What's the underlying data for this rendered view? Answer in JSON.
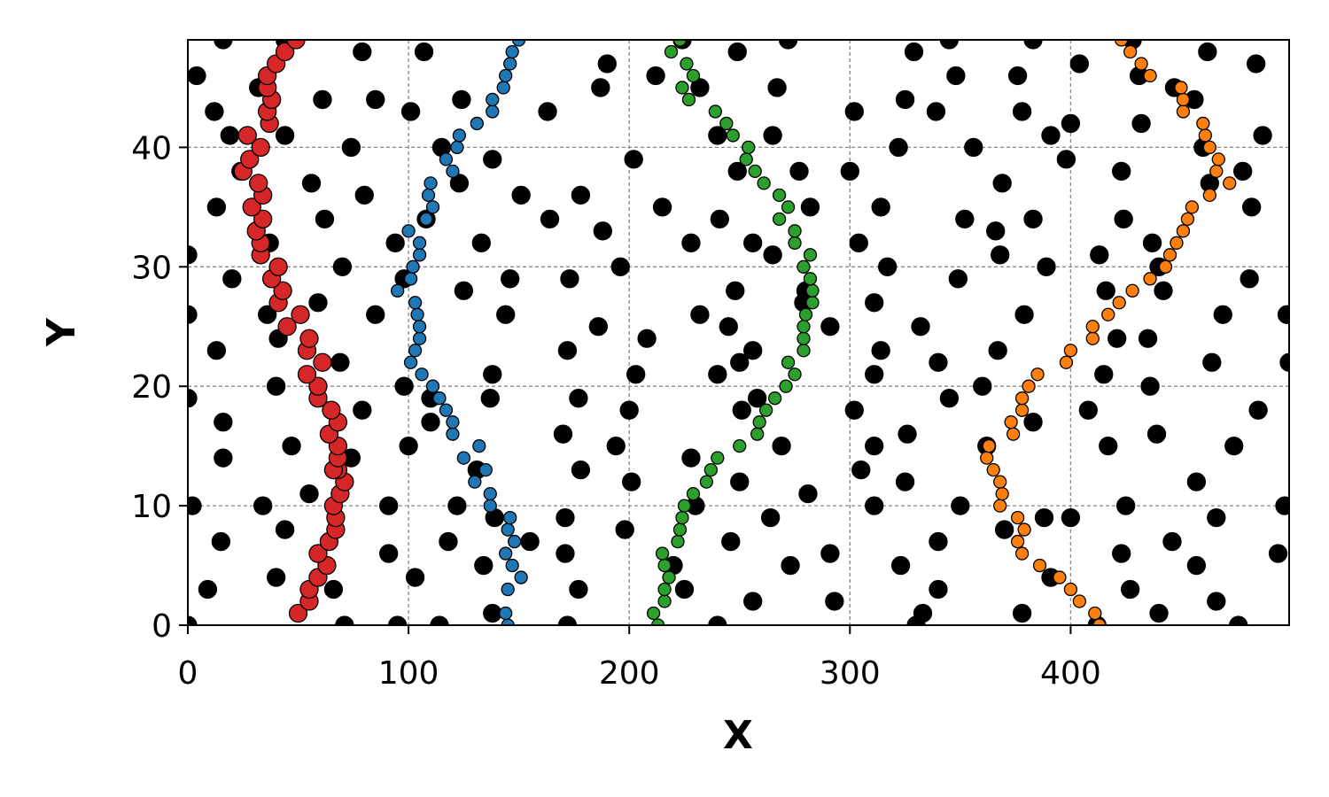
{
  "chart_data": {
    "type": "scatter",
    "xlabel": "X",
    "ylabel": "Y",
    "xlim": [
      0,
      499
    ],
    "ylim": [
      0,
      49
    ],
    "xticks": [
      0,
      100,
      200,
      300,
      400
    ],
    "yticks": [
      0,
      10,
      20,
      30,
      40
    ],
    "grid": true,
    "series": [
      {
        "color": "#000000",
        "marker_size": 10,
        "x": [
          16,
          44,
          224,
          272,
          345,
          383,
          428,
          79,
          107,
          249,
          329,
          462,
          190,
          404,
          484,
          4,
          212,
          348,
          376,
          431,
          32,
          187,
          232,
          267,
          447,
          61,
          85,
          124,
          325,
          456,
          12,
          101,
          163,
          302,
          339,
          378,
          400,
          432,
          19,
          44,
          240,
          265,
          391,
          487,
          74,
          115,
          322,
          356,
          460,
          138,
          202,
          398,
          24,
          249,
          277,
          300,
          423,
          478,
          56,
          123,
          369,
          463,
          80,
          151,
          178,
          13,
          215,
          282,
          314,
          482,
          62,
          108,
          164,
          241,
          352,
          383,
          424,
          188,
          366,
          37,
          94,
          133,
          228,
          256,
          304,
          437,
          0,
          265,
          368,
          413,
          70,
          196,
          317,
          389,
          440,
          20,
          98,
          146,
          173,
          349,
          481,
          125,
          248,
          280,
          416,
          442,
          59,
          279,
          311,
          0,
          36,
          85,
          144,
          232,
          379,
          469,
          498,
          186,
          245,
          291,
          332,
          41,
          208,
          421,
          435,
          13,
          172,
          256,
          314,
          367,
          69,
          250,
          340,
          464,
          499,
          138,
          203,
          240,
          311,
          415,
          40,
          98,
          360,
          436,
          0,
          110,
          137,
          177,
          258,
          345,
          79,
          200,
          251,
          302,
          408,
          485,
          16,
          110,
          383,
          170,
          326,
          439,
          47,
          100,
          194,
          269,
          311,
          362,
          417,
          474,
          16,
          74,
          228,
          131,
          178,
          305,
          201,
          250,
          325,
          457,
          55,
          281,
          2,
          34,
          91,
          122,
          230,
          311,
          350,
          425,
          497,
          139,
          171,
          264,
          388,
          400,
          466,
          44,
          198,
          370,
          15,
          118,
          155,
          246,
          340,
          446,
          91,
          171,
          291,
          423,
          494,
          134,
          220,
          273,
          323,
          457,
          40,
          103,
          391,
          9,
          66,
          177,
          225,
          340,
          427,
          256,
          293,
          466,
          138,
          333,
          378,
          440,
          0,
          71,
          95,
          114,
          172,
          240,
          330,
          412,
          476
        ],
        "values": [
          49,
          49,
          49,
          49,
          49,
          49,
          49,
          48,
          48,
          48,
          48,
          48,
          47,
          47,
          47,
          46,
          46,
          46,
          46,
          46,
          45,
          45,
          45,
          45,
          45,
          44,
          44,
          44,
          44,
          44,
          43,
          43,
          43,
          43,
          43,
          43,
          42,
          42,
          41,
          41,
          41,
          41,
          41,
          41,
          40,
          40,
          40,
          40,
          40,
          39,
          39,
          39,
          38,
          38,
          38,
          38,
          38,
          38,
          37,
          37,
          37,
          37,
          36,
          36,
          36,
          35,
          35,
          35,
          35,
          35,
          34,
          34,
          34,
          34,
          34,
          34,
          34,
          33,
          33,
          32,
          32,
          32,
          32,
          32,
          32,
          32,
          31,
          31,
          31,
          31,
          30,
          30,
          30,
          30,
          30,
          29,
          29,
          29,
          29,
          29,
          29,
          28,
          28,
          28,
          28,
          28,
          27,
          27,
          27,
          26,
          26,
          26,
          26,
          26,
          26,
          26,
          26,
          25,
          25,
          25,
          25,
          24,
          24,
          24,
          24,
          23,
          23,
          23,
          23,
          23,
          22,
          22,
          22,
          22,
          22,
          21,
          21,
          21,
          21,
          21,
          20,
          20,
          20,
          20,
          19,
          19,
          19,
          19,
          19,
          19,
          18,
          18,
          18,
          18,
          18,
          18,
          17,
          17,
          17,
          16,
          16,
          16,
          15,
          15,
          15,
          15,
          15,
          15,
          15,
          15,
          14,
          14,
          14,
          13,
          13,
          13,
          12,
          12,
          12,
          12,
          11,
          11,
          10,
          10,
          10,
          10,
          10,
          10,
          10,
          10,
          10,
          9,
          9,
          9,
          9,
          9,
          9,
          8,
          8,
          8,
          7,
          7,
          7,
          7,
          7,
          7,
          6,
          6,
          6,
          6,
          6,
          5,
          5,
          5,
          5,
          5,
          4,
          4,
          4,
          3,
          3,
          3,
          3,
          3,
          3,
          2,
          2,
          2,
          1,
          1,
          1,
          1,
          0,
          0,
          0,
          0,
          0,
          0,
          0,
          0,
          0
        ]
      },
      {
        "color": "#d62728",
        "marker_size": 10,
        "x": [
          50,
          55,
          55,
          59,
          63,
          59,
          64,
          67,
          67,
          66,
          69,
          71,
          68,
          66,
          68,
          68,
          64,
          68,
          65,
          59,
          59,
          54,
          61,
          54,
          55,
          45,
          51,
          41,
          43,
          38,
          41,
          33,
          33,
          31,
          34,
          29,
          34,
          32,
          25,
          28,
          33,
          27,
          37,
          36,
          38,
          36,
          36,
          40,
          44,
          49
        ],
        "values": [
          1,
          2,
          3,
          4,
          5,
          6,
          7,
          8,
          9,
          10,
          11,
          12,
          13,
          13,
          14,
          15,
          16,
          17,
          18,
          19,
          20,
          21,
          22,
          23,
          24,
          25,
          26,
          27,
          28,
          29,
          30,
          31,
          32,
          33,
          34,
          35,
          36,
          37,
          38,
          39,
          40,
          41,
          42,
          43,
          44,
          45,
          46,
          47,
          48,
          49
        ]
      },
      {
        "color": "#1f77b4",
        "marker_size": 7,
        "x": [
          145,
          144,
          145,
          151,
          147,
          144,
          148,
          145,
          146,
          137,
          137,
          130,
          135,
          125,
          132,
          120,
          120,
          117,
          114,
          111,
          106,
          101,
          103,
          105,
          105,
          104,
          103,
          95,
          101,
          102,
          105,
          105,
          100,
          108,
          111,
          109,
          110,
          120,
          117,
          122,
          123,
          131,
          138,
          138,
          143,
          144,
          146,
          147,
          150
        ],
        "values": [
          0,
          1,
          3,
          4,
          5,
          6,
          7,
          8,
          9,
          10,
          11,
          12,
          13,
          14,
          15,
          16,
          17,
          18,
          19,
          20,
          21,
          22,
          23,
          24,
          25,
          26,
          27,
          28,
          29,
          30,
          31,
          32,
          33,
          34,
          35,
          36,
          37,
          38,
          39,
          40,
          41,
          42,
          43,
          44,
          45,
          46,
          47,
          48,
          49
        ]
      },
      {
        "color": "#2ca02c",
        "marker_size": 7,
        "x": [
          213,
          211,
          216,
          216,
          218,
          216,
          215,
          222,
          223,
          224,
          225,
          229,
          235,
          237,
          240,
          250,
          258,
          259,
          262,
          266,
          271,
          275,
          272,
          279,
          279,
          279,
          280,
          283,
          283,
          282,
          279,
          282,
          275,
          275,
          268,
          272,
          268,
          261,
          257,
          253,
          254,
          247,
          244,
          239,
          227,
          224,
          229,
          226,
          219,
          223
        ],
        "values": [
          0,
          1,
          2,
          3,
          4,
          5,
          6,
          7,
          8,
          9,
          10,
          11,
          12,
          13,
          14,
          15,
          16,
          17,
          18,
          19,
          20,
          21,
          22,
          23,
          24,
          25,
          26,
          27,
          28,
          29,
          30,
          31,
          32,
          33,
          34,
          35,
          36,
          37,
          38,
          39,
          40,
          41,
          42,
          43,
          44,
          45,
          46,
          47,
          48,
          49
        ]
      },
      {
        "color": "#ff7f0e",
        "marker_size": 7,
        "x": [
          413,
          411,
          404,
          400,
          395,
          386,
          378,
          376,
          379,
          376,
          368,
          369,
          368,
          365,
          362,
          363,
          374,
          373,
          378,
          378,
          381,
          385,
          398,
          400,
          410,
          410,
          417,
          422,
          428,
          436,
          443,
          445,
          448,
          451,
          453,
          455,
          463,
          472,
          466,
          467,
          463,
          461,
          460,
          451,
          451,
          450,
          436,
          432,
          427,
          423
        ],
        "values": [
          0,
          1,
          2,
          3,
          4,
          5,
          6,
          7,
          8,
          9,
          10,
          11,
          12,
          13,
          14,
          15,
          16,
          17,
          18,
          19,
          20,
          21,
          22,
          23,
          24,
          25,
          26,
          27,
          28,
          29,
          30,
          31,
          32,
          33,
          34,
          35,
          36,
          37,
          38,
          39,
          40,
          41,
          42,
          43,
          44,
          45,
          46,
          47,
          48,
          49
        ]
      }
    ]
  }
}
